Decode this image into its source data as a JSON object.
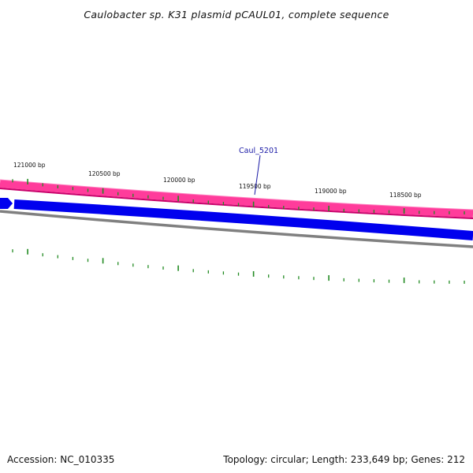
{
  "title": "Caulobacter sp. K31 plasmid pCAUL01, complete sequence",
  "footer": {
    "accession": "Accession: NC_010335",
    "summary": "Topology: circular; Length: 233,649 bp; Genes: 212"
  },
  "position_labels": [
    "121000 bp",
    "120500 bp",
    "120000 bp",
    "119500 bp",
    "119000 bp",
    "118500 bp"
  ],
  "gene_label": "Caul_5201",
  "colors": {
    "outer_band": "#ff3c9b",
    "outer_band_edge": "#c8006a",
    "gene": "#0000ee",
    "backbone": "#808080",
    "ticks": "#228b22",
    "gene_label": "#1a1aa6"
  }
}
